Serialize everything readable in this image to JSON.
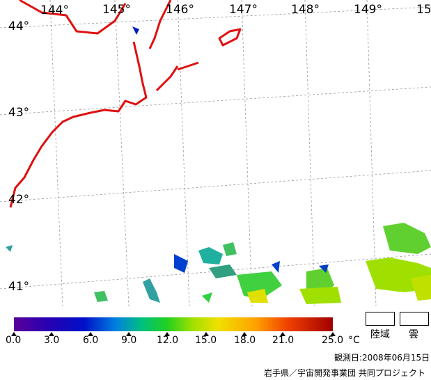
{
  "map": {
    "lon_labels": [
      "144°",
      "145°",
      "146°",
      "147°",
      "148°",
      "149°",
      "15"
    ],
    "lat_labels": [
      "44°",
      "43°",
      "42°",
      "41°"
    ],
    "coastline_color": "#e01010",
    "grid_color": "#999999"
  },
  "legend": {
    "scale_ticks": [
      "0.0",
      "3.0",
      "6.0",
      "9.0",
      "12.0",
      "15.0",
      "18.0",
      "21.0",
      "25.0"
    ],
    "unit": "°C",
    "land_label": "陸域",
    "cloud_label": "雲"
  },
  "footer": {
    "observation_date": "観測日:2008年06月15日",
    "credit": "岩手県／宇宙開発事業団 共同プロジェクト"
  }
}
